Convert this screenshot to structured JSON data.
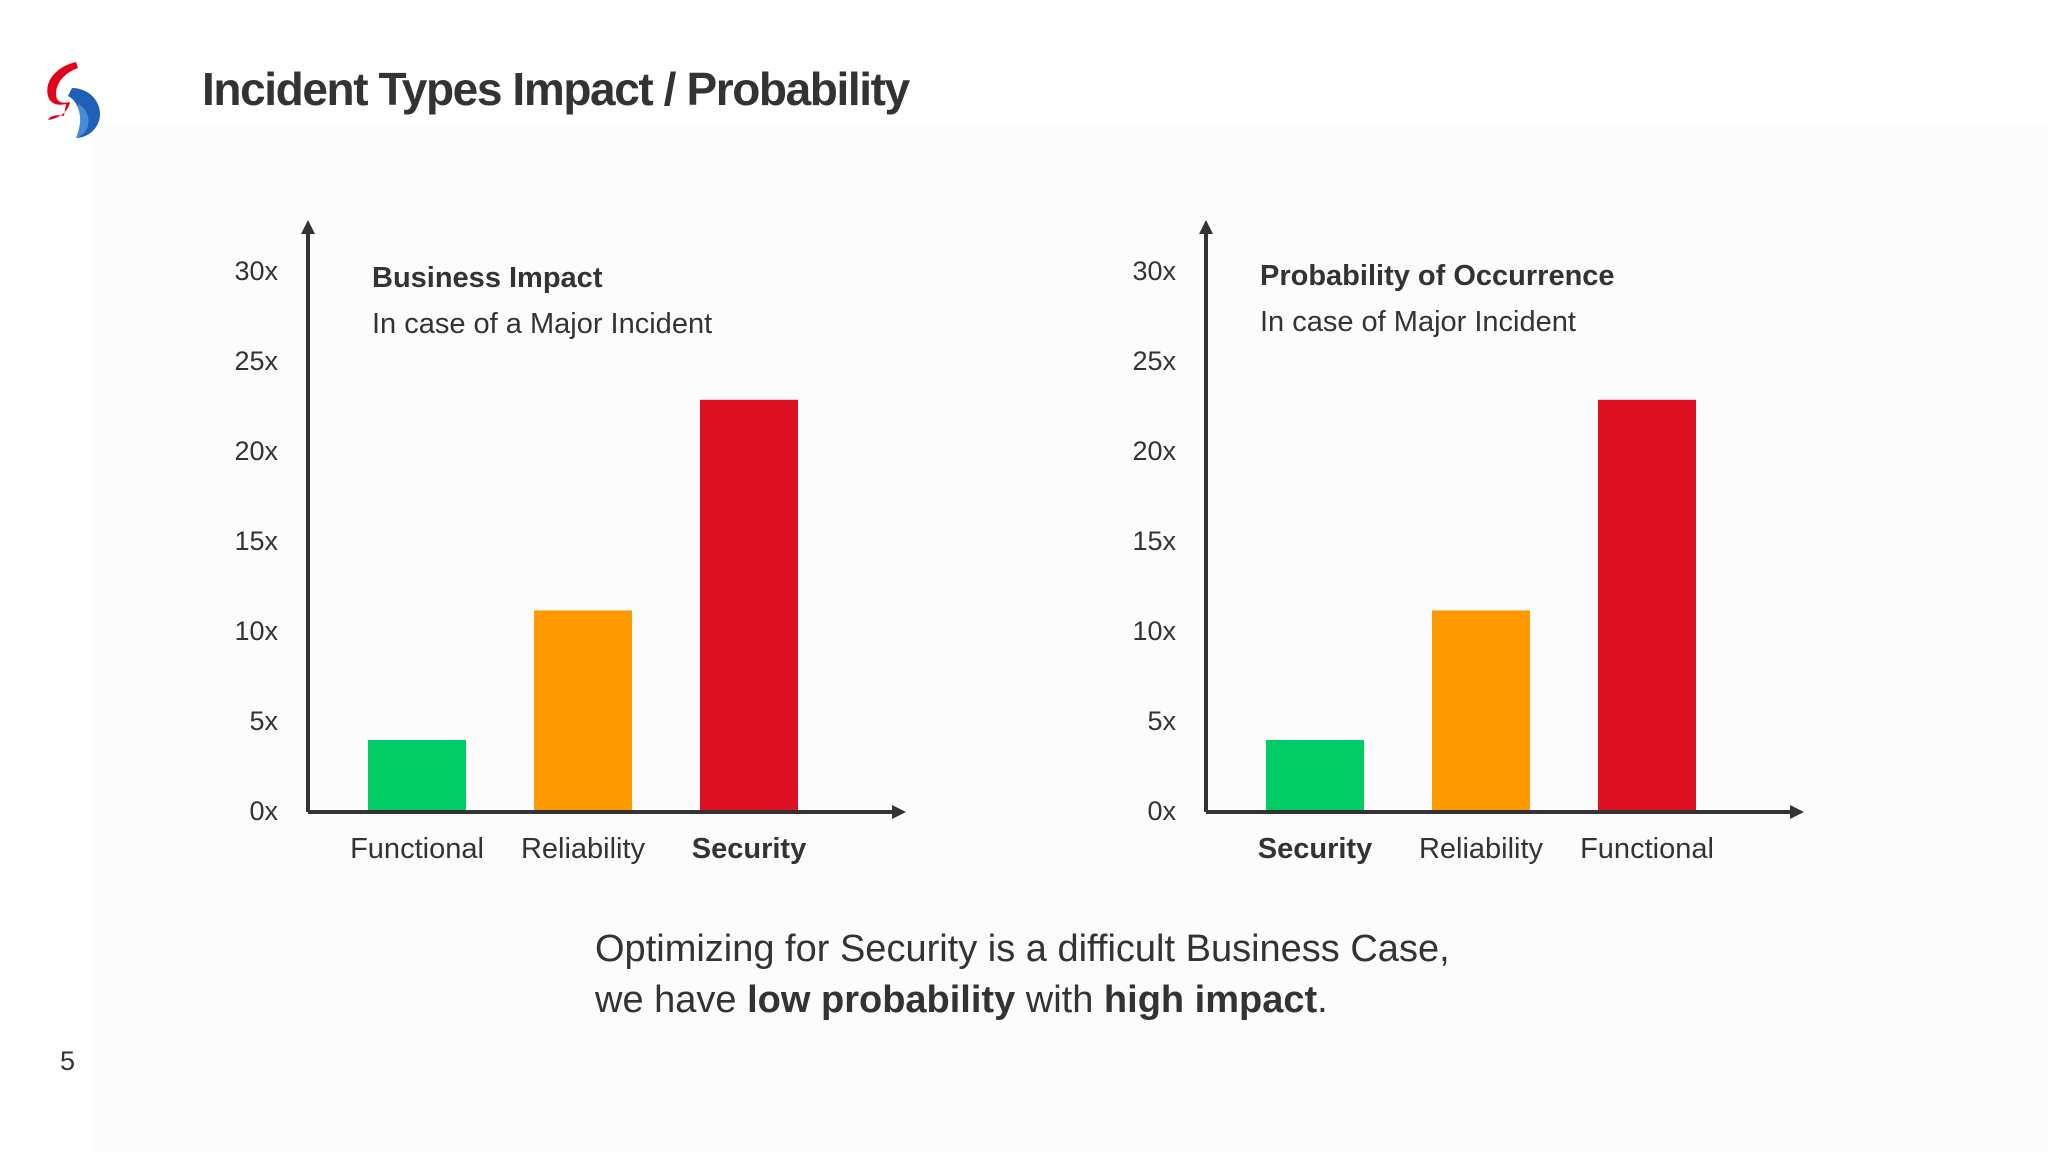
{
  "slide": {
    "title": "Incident Types Impact / Probability",
    "page_number": "5"
  },
  "colors": {
    "green": "#00cc66",
    "orange": "#ff9900",
    "red": "#dd1122",
    "axis": "#333333",
    "logo_red": "#e2001a",
    "logo_blue": "#1f5fb8"
  },
  "chart_data": [
    {
      "type": "bar",
      "title": "Business Impact",
      "subtitle": "In case of a Major Incident",
      "categories": [
        "Functional",
        "Reliability",
        "Security"
      ],
      "values": [
        4,
        11.2,
        22.9
      ],
      "bar_colors": [
        "#00cc66",
        "#ff9900",
        "#dd1122"
      ],
      "bold_categories": [
        "Security"
      ],
      "ylim": [
        0,
        30
      ],
      "yticks": [
        0,
        5,
        10,
        15,
        20,
        25,
        30
      ],
      "ytick_labels": [
        "0x",
        "5x",
        "10x",
        "15x",
        "20x",
        "25x",
        "30x"
      ],
      "grid": false,
      "legend": "none"
    },
    {
      "type": "bar",
      "title": "Probability of Occurrence",
      "subtitle": "In case of Major Incident",
      "categories": [
        "Security",
        "Reliability",
        "Functional"
      ],
      "values": [
        4,
        11.2,
        22.9
      ],
      "bar_colors": [
        "#00cc66",
        "#ff9900",
        "#dd1122"
      ],
      "bold_categories": [
        "Security"
      ],
      "ylim": [
        0,
        30
      ],
      "yticks": [
        0,
        5,
        10,
        15,
        20,
        25,
        30
      ],
      "ytick_labels": [
        "0x",
        "5x",
        "10x",
        "15x",
        "20x",
        "25x",
        "30x"
      ],
      "grid": false,
      "legend": "none"
    }
  ],
  "footer": {
    "line1": "Optimizing for Security is a difficult Business Case,",
    "line2_prefix": "we have ",
    "line2_bold1": "low probability",
    "line2_middle": " with ",
    "line2_bold2": "high impact",
    "line2_suffix": "."
  }
}
